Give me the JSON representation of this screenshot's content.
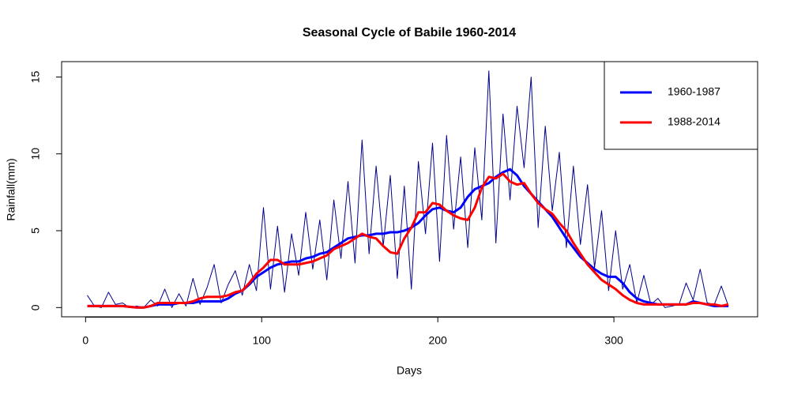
{
  "chart_data": {
    "type": "line",
    "title": "Seasonal Cycle of Babile 1960-2014",
    "x_label": "Days",
    "y_label": "Rainfall(mm)",
    "xlim": [
      -13.6,
      381.6
    ],
    "xticks": [
      0,
      100,
      200,
      300
    ],
    "ylim": [
      -0.6,
      16.0
    ],
    "yticks": [
      0,
      5,
      10,
      15
    ],
    "legend_position": "topright",
    "x": [
      1,
      5,
      9,
      13,
      17,
      21,
      25,
      29,
      33,
      37,
      41,
      45,
      49,
      53,
      57,
      61,
      65,
      69,
      73,
      77,
      81,
      85,
      89,
      93,
      97,
      101,
      105,
      109,
      113,
      117,
      121,
      125,
      129,
      133,
      137,
      141,
      145,
      149,
      153,
      157,
      161,
      165,
      169,
      173,
      177,
      181,
      185,
      189,
      193,
      197,
      201,
      205,
      209,
      213,
      217,
      221,
      225,
      229,
      233,
      237,
      241,
      245,
      249,
      253,
      257,
      261,
      265,
      269,
      273,
      277,
      281,
      285,
      289,
      293,
      297,
      301,
      305,
      309,
      313,
      317,
      321,
      325,
      329,
      333,
      337,
      341,
      345,
      349,
      353,
      357,
      361,
      365
    ],
    "series": [
      {
        "color": "#00008b",
        "values": [
          0.8,
          0.1,
          0,
          1.0,
          0.2,
          0.3,
          0,
          0.1,
          0,
          0.5,
          0.1,
          1.2,
          0,
          0.9,
          0.1,
          1.9,
          0.2,
          1.3,
          2.8,
          0.3,
          1.5,
          2.4,
          0.8,
          2.8,
          1.1,
          6.5,
          1.2,
          5.3,
          1.0,
          4.8,
          2.1,
          6.2,
          2.5,
          5.7,
          1.8,
          7.0,
          3.2,
          8.2,
          2.9,
          10.9,
          3.5,
          9.2,
          4.0,
          8.6,
          1.9,
          7.9,
          1.2,
          9.5,
          4.8,
          10.7,
          3.0,
          11.2,
          5.1,
          9.8,
          3.9,
          10.4,
          5.7,
          15.4,
          4.2,
          12.6,
          7.0,
          13.1,
          9.1,
          15.0,
          5.2,
          11.8,
          6.3,
          10.1,
          3.9,
          9.2,
          4.1,
          8.0,
          2.6,
          6.3,
          1.1,
          5.0,
          1.2,
          2.8,
          0.3,
          2.1,
          0.2,
          0.6,
          0,
          0.1,
          0.2,
          1.6,
          0.5,
          2.5,
          0.3,
          0.2,
          1.4,
          0.1
        ]
      },
      {
        "name": "1960-1987",
        "color": "#0000ff",
        "values": [
          0.1,
          0.1,
          0.1,
          0.1,
          0.1,
          0.1,
          0.05,
          0,
          0,
          0.1,
          0.2,
          0.2,
          0.2,
          0.3,
          0.3,
          0.3,
          0.4,
          0.4,
          0.4,
          0.4,
          0.6,
          0.9,
          1.1,
          1.5,
          2.0,
          2.3,
          2.6,
          2.8,
          2.9,
          3.0,
          3.0,
          3.2,
          3.3,
          3.5,
          3.6,
          3.9,
          4.2,
          4.5,
          4.6,
          4.7,
          4.7,
          4.8,
          4.8,
          4.9,
          4.9,
          5.0,
          5.2,
          5.5,
          6.0,
          6.4,
          6.5,
          6.3,
          6.2,
          6.5,
          7.2,
          7.7,
          7.9,
          8.1,
          8.5,
          8.8,
          9.0,
          8.6,
          7.9,
          7.4,
          6.9,
          6.4,
          5.9,
          5.2,
          4.5,
          3.9,
          3.3,
          2.9,
          2.5,
          2.2,
          2.0,
          2.0,
          1.6,
          1.0,
          0.6,
          0.4,
          0.3,
          0.2,
          0.2,
          0.2,
          0.2,
          0.2,
          0.4,
          0.3,
          0.2,
          0.1,
          0.1,
          0.1
        ]
      },
      {
        "name": "1988-2014",
        "color": "#ff0000",
        "values": [
          0.1,
          0.1,
          0.1,
          0.1,
          0.1,
          0.1,
          0.05,
          0,
          0,
          0.1,
          0.3,
          0.3,
          0.3,
          0.3,
          0.3,
          0.4,
          0.6,
          0.7,
          0.7,
          0.7,
          0.8,
          1.0,
          1.1,
          1.6,
          2.2,
          2.6,
          3.1,
          3.1,
          2.8,
          2.8,
          2.8,
          2.9,
          3.0,
          3.2,
          3.4,
          3.8,
          4.0,
          4.2,
          4.5,
          4.8,
          4.6,
          4.5,
          4.0,
          3.6,
          3.5,
          4.5,
          5.2,
          6.2,
          6.2,
          6.8,
          6.7,
          6.3,
          6.0,
          5.8,
          5.7,
          6.5,
          7.8,
          8.5,
          8.4,
          8.7,
          8.2,
          8.0,
          8.1,
          7.4,
          6.8,
          6.4,
          6.1,
          5.5,
          5.0,
          4.2,
          3.5,
          2.8,
          2.3,
          1.8,
          1.5,
          1.2,
          0.8,
          0.5,
          0.3,
          0.2,
          0.2,
          0.2,
          0.2,
          0.2,
          0.2,
          0.2,
          0.3,
          0.3,
          0.2,
          0.2,
          0.1,
          0.2
        ]
      }
    ]
  }
}
